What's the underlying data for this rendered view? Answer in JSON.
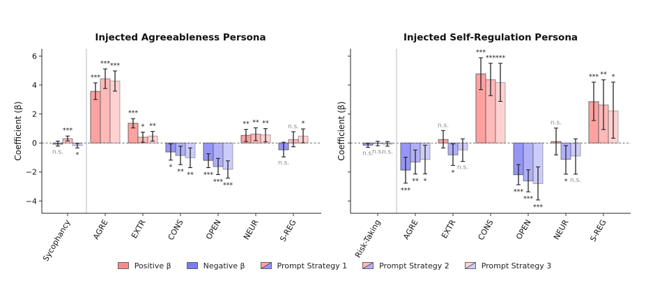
{
  "chart_data": [
    {
      "type": "bar",
      "title": "Injected Agreeableness Persona",
      "xlabel": "",
      "ylabel": "Coefficient (β)",
      "ylim": [
        -4.85,
        6.5
      ],
      "yticks": [
        -4,
        -2,
        0,
        2,
        4,
        6
      ],
      "ytick_labels": [
        "−4",
        "−2",
        "0",
        "2",
        "4",
        "6"
      ],
      "show_ytick_labels": true,
      "zero_line": "dashed",
      "grid": false,
      "categories": [
        "Sycophancy",
        "AGRE",
        "EXTR",
        "CONS",
        "OPEN",
        "NEUR",
        "S-REG"
      ],
      "separator_after_category": 0,
      "series": [
        {
          "name": "Prompt Strategy 1",
          "values": [
            -0.08,
            3.56,
            1.36,
            -0.62,
            -1.2,
            0.53,
            -0.47
          ],
          "ci_low": [
            -0.21,
            3.0,
            1.04,
            -1.18,
            -1.7,
            0.1,
            -0.96
          ],
          "ci_high": [
            0.13,
            4.15,
            1.68,
            -0.06,
            -0.74,
            0.94,
            0.05
          ],
          "significance": [
            "n.s.",
            "***",
            "***",
            "*",
            "***",
            "**",
            "n.s."
          ]
        },
        {
          "name": "Prompt Strategy 2",
          "values": [
            0.3,
            4.43,
            0.4,
            -0.86,
            -1.63,
            0.62,
            0.24
          ],
          "ci_low": [
            0.14,
            3.76,
            0.05,
            -1.49,
            -2.18,
            0.16,
            -0.26
          ],
          "ci_high": [
            0.48,
            5.11,
            0.75,
            -0.22,
            -1.06,
            1.05,
            0.78
          ],
          "significance": [
            "***",
            "***",
            "*",
            "**",
            "***",
            "**",
            "n.s."
          ]
        },
        {
          "name": "Prompt Strategy 3",
          "values": [
            -0.18,
            4.28,
            0.48,
            -1.02,
            -1.82,
            0.56,
            0.48
          ],
          "ci_low": [
            -0.34,
            3.58,
            0.13,
            -1.7,
            -2.42,
            0.08,
            0.01
          ],
          "ci_high": [
            -0.03,
            4.97,
            0.8,
            -0.34,
            -1.23,
            0.99,
            0.97
          ],
          "significance": [
            "*",
            "***",
            "**",
            "**",
            "***",
            "**",
            "*"
          ]
        }
      ]
    },
    {
      "type": "bar",
      "title": "Injected Self-Regulation Persona",
      "xlabel": "",
      "ylabel": "Coefficient (β)",
      "ylim": [
        -4.85,
        6.5
      ],
      "yticks": [
        -4,
        -2,
        0,
        2,
        4,
        6
      ],
      "ytick_labels": [
        "",
        "",
        "",
        "",
        "",
        ""
      ],
      "show_ytick_labels": false,
      "zero_line": "dashed",
      "grid": false,
      "categories": [
        "Risk-Taking",
        "AGRE",
        "EXTR",
        "CONS",
        "OPEN",
        "NEUR",
        "S-REG"
      ],
      "separator_after_category": 0,
      "series": [
        {
          "name": "Prompt Strategy 1",
          "values": [
            -0.15,
            -1.87,
            0.24,
            4.77,
            -2.19,
            0.1,
            2.85
          ],
          "ci_low": [
            -0.3,
            -2.77,
            -0.34,
            3.68,
            -2.88,
            -0.82,
            1.55
          ],
          "ci_high": [
            -0.02,
            -0.98,
            0.86,
            5.88,
            -1.49,
            1.03,
            4.2
          ],
          "significance": [
            "n.s.",
            "***",
            "n.s.",
            "***",
            "***",
            "n.s.",
            "***"
          ]
        },
        {
          "name": "Prompt Strategy 2",
          "values": [
            -0.03,
            -1.31,
            -0.82,
            4.37,
            -2.62,
            -1.13,
            2.62
          ],
          "ci_low": [
            -0.19,
            -2.14,
            -1.55,
            3.27,
            -3.37,
            -2.15,
            0.93
          ],
          "ci_high": [
            0.12,
            -0.48,
            -0.06,
            5.5,
            -1.85,
            -0.18,
            4.36
          ],
          "significance": [
            "n.s.",
            "**",
            "*",
            "***",
            "***",
            "*",
            "**"
          ]
        },
        {
          "name": "Prompt Strategy 3",
          "values": [
            -0.08,
            -1.14,
            -0.48,
            4.17,
            -2.8,
            -0.9,
            2.22
          ],
          "ci_low": [
            -0.22,
            -2.13,
            -1.27,
            2.87,
            -3.93,
            -2.15,
            0.33
          ],
          "ci_high": [
            0.1,
            -0.15,
            0.29,
            5.5,
            -1.65,
            0.29,
            4.2
          ],
          "significance": [
            "n.s.",
            "*",
            "n.s.",
            "***",
            "***",
            "n.s.",
            "*"
          ]
        }
      ]
    }
  ],
  "colors": {
    "positive": "#ff8a8a",
    "negative": "#7b7bf5",
    "series_alpha": [
      0.8,
      0.6,
      0.38
    ],
    "ns_text": "#888888",
    "sig_text": "#222222",
    "errorbar": "#222222",
    "axis": "#222222",
    "separator": "#b8b8b8"
  },
  "legend": {
    "position": "bottom-center",
    "items": [
      {
        "label": "Positive β",
        "kind": "positive"
      },
      {
        "label": "Negative β",
        "kind": "negative"
      },
      {
        "label": "Prompt Strategy 1",
        "kind": "split",
        "series": 0
      },
      {
        "label": "Prompt Strategy 2",
        "kind": "split",
        "series": 1
      },
      {
        "label": "Prompt Strategy 3",
        "kind": "split",
        "series": 2
      }
    ]
  }
}
